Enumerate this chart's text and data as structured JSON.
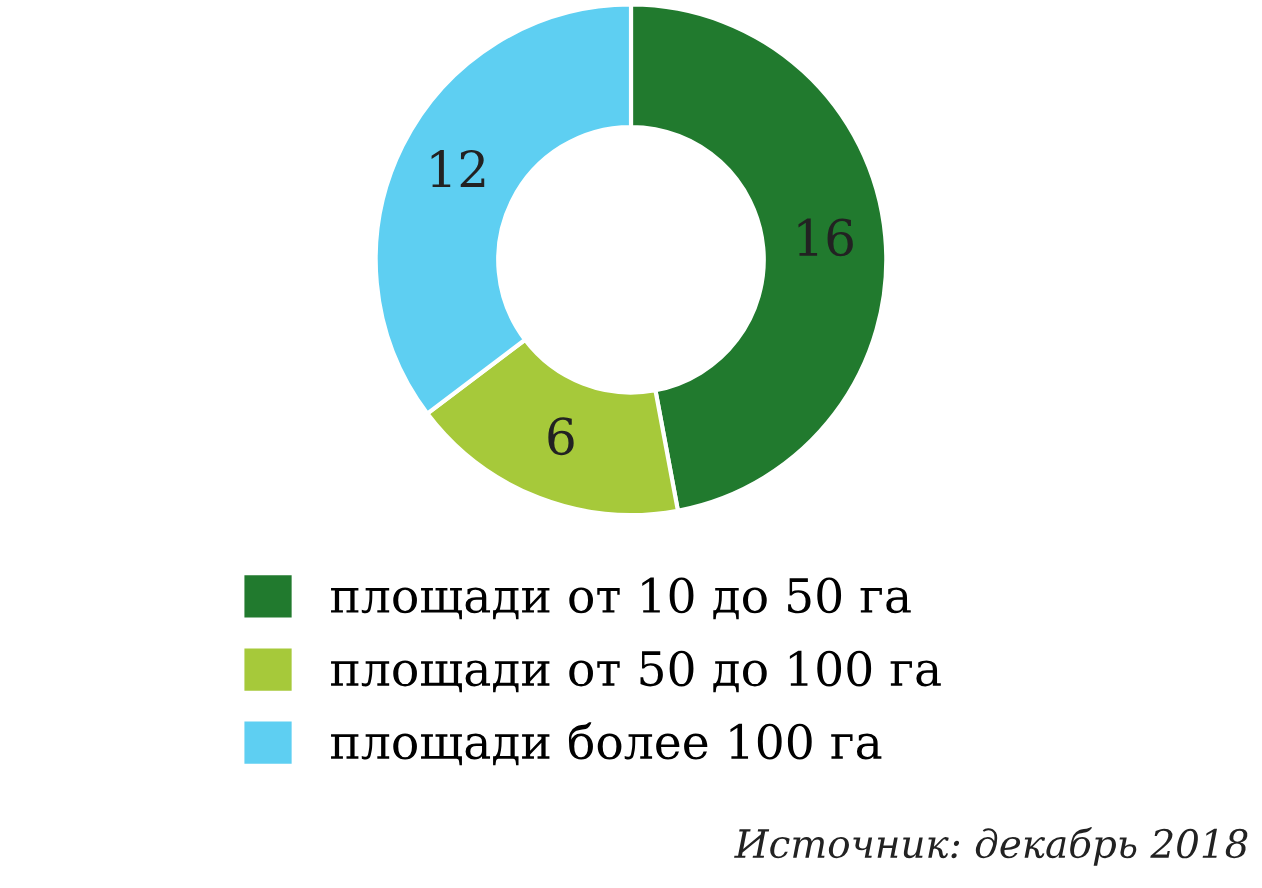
{
  "chart_data": {
    "type": "donut",
    "categories": [
      "площади от 10 до 50 га",
      "площади от 50 до 100 га",
      "площади более 100 га"
    ],
    "values": [
      16,
      6,
      12
    ],
    "colors": [
      "#217a2e",
      "#a6c93a",
      "#5ecff2"
    ],
    "data_labels": true,
    "legend": "bottom",
    "annotations": [
      "Источник: декабрь 2018"
    ]
  }
}
